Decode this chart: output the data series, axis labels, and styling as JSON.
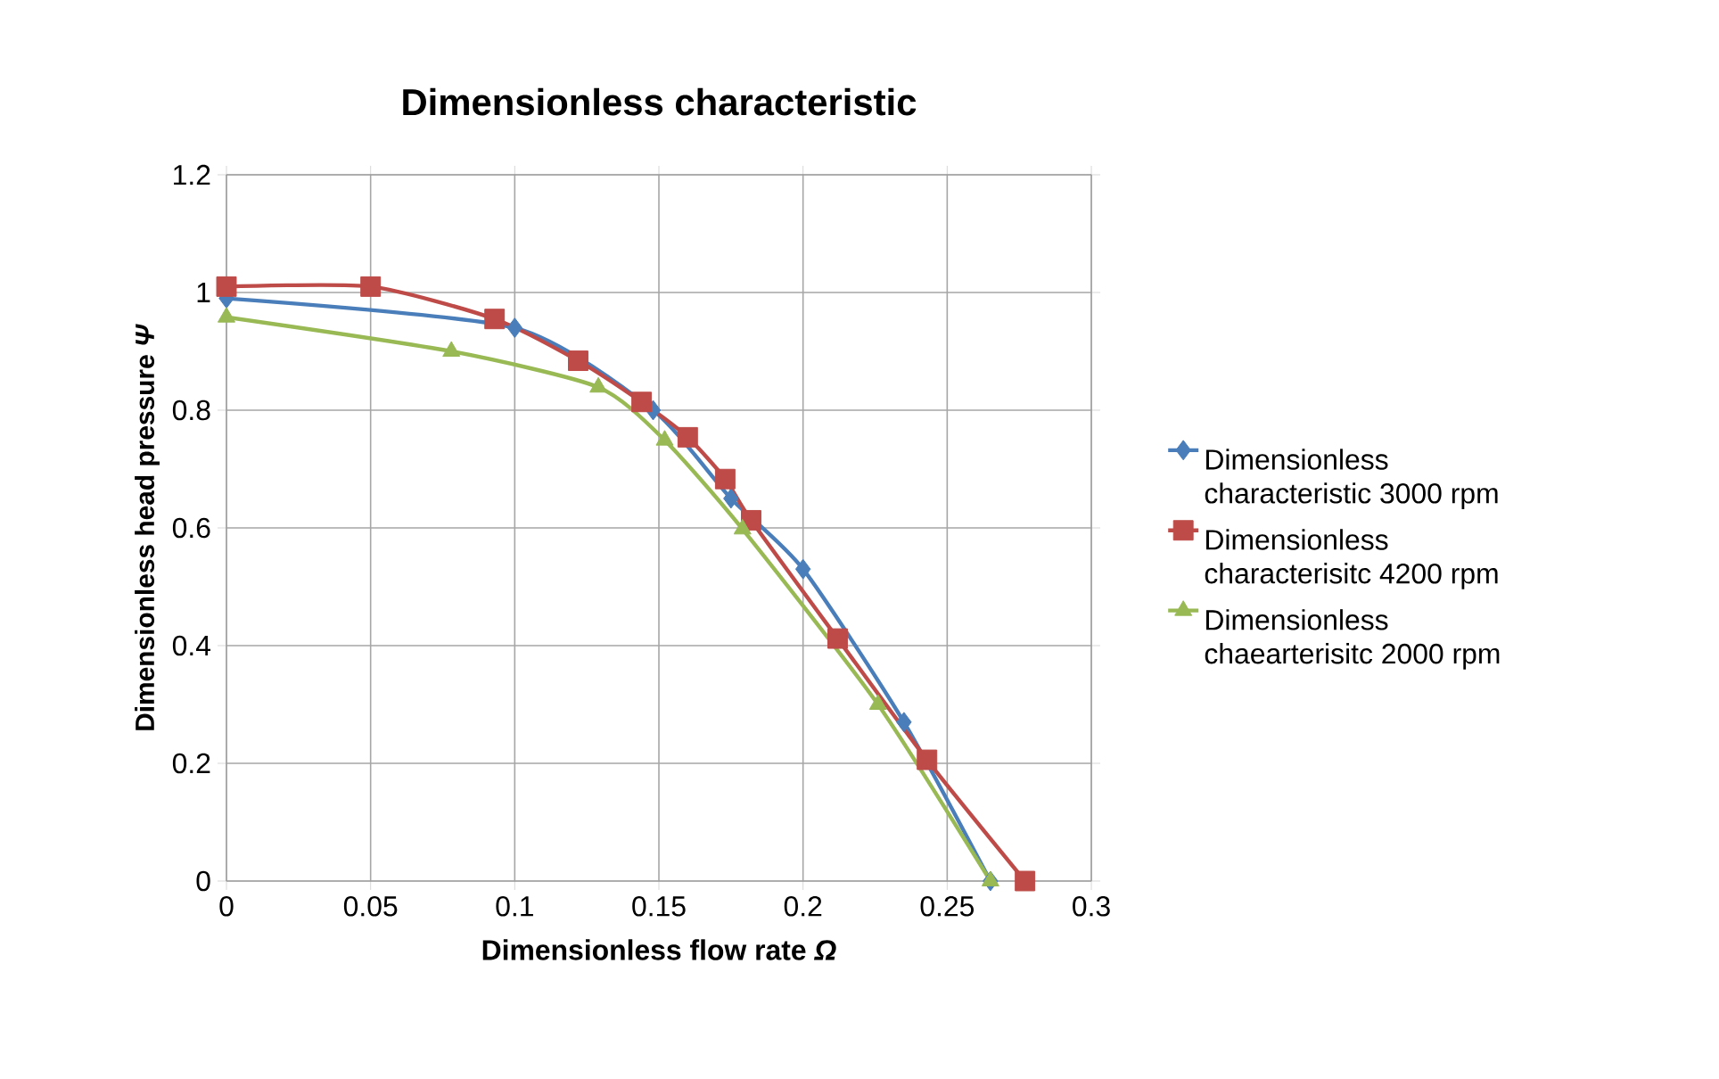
{
  "chart_data": {
    "type": "line",
    "title": "Dimensionless characteristic",
    "xlabel": "Dimensionless flow rate  *Ω*",
    "ylabel": "Dimensionless head  pressure  *Ψ*",
    "xlim": [
      0,
      0.3
    ],
    "xticks": [
      0,
      0.05,
      0.1,
      0.15,
      0.2,
      0.25,
      0.3
    ],
    "ylim": [
      0,
      1.2
    ],
    "yticks": [
      0,
      0.2,
      0.4,
      0.6,
      0.8,
      1,
      1.2
    ],
    "grid": true,
    "legend": "right",
    "series": [
      {
        "name": "Dimensionless characteristic 3000 rpm",
        "color": "#4a7ebb",
        "marker": "diamond",
        "x": [
          0,
          0.1,
          0.125,
          0.148,
          0.175,
          0.2,
          0.235,
          0.265
        ],
        "values": [
          0.99,
          0.94,
          null,
          0.8,
          0.65,
          0.53,
          0.27,
          0
        ]
      },
      {
        "name": "Dimensionless characterisitc 4200 rpm",
        "color": "#be4b48",
        "marker": "square",
        "x": [
          0,
          0.05,
          0.093,
          0.122,
          0.144,
          0.16,
          0.173,
          0.182,
          0.212,
          0.243,
          0.277
        ],
        "values": [
          1.01,
          1.01,
          0.955,
          0.884,
          0.814,
          0.754,
          0.683,
          0.613,
          0.412,
          0.206,
          0
        ]
      },
      {
        "name": "Dimensionless chaearterisitc 2000 rpm",
        "color": "#98b954",
        "marker": "triangle",
        "x": [
          0,
          0.078,
          0.129,
          0.152,
          0.179,
          0.226,
          0.265
        ],
        "values": [
          0.958,
          0.9,
          0.839,
          0.749,
          0.598,
          0.3,
          0
        ]
      }
    ]
  }
}
